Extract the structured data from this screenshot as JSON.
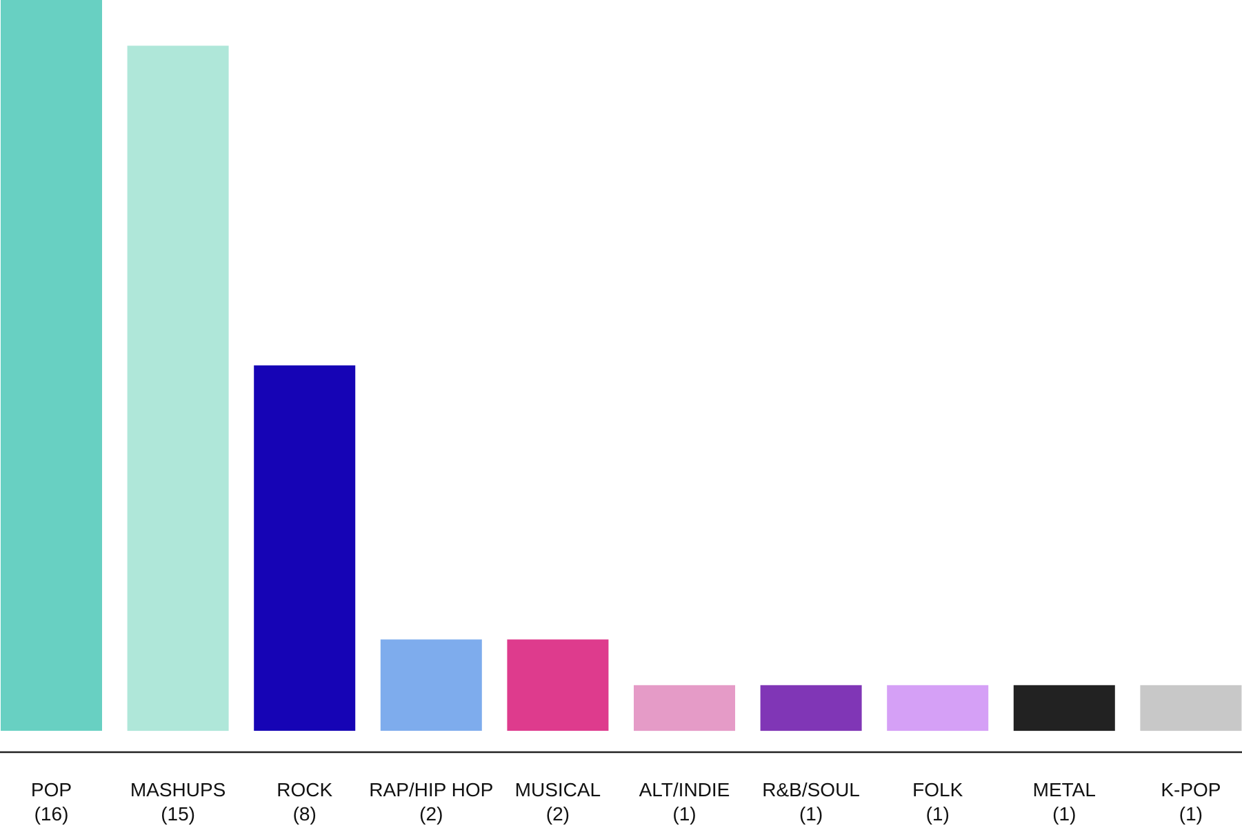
{
  "chart_data": {
    "type": "bar",
    "categories": [
      "POP",
      "MASHUPS",
      "ROCK",
      "RAP/HIP HOP",
      "MUSICAL",
      "ALT/INDIE",
      "R&B/SOUL",
      "FOLK",
      "METAL",
      "K-POP"
    ],
    "count_labels": [
      "(16)",
      "(15)",
      "(8)",
      "(2)",
      "(2)",
      "(1)",
      "(1)",
      "(1)",
      "(1)",
      "(1)"
    ],
    "values": [
      16,
      15,
      8,
      2,
      2,
      1,
      1,
      1,
      1,
      1
    ],
    "colors": [
      "#68d0c2",
      "#afe7d9",
      "#1604b5",
      "#7eaced",
      "#de3b8d",
      "#e59bc7",
      "#8036b6",
      "#d5a0f6",
      "#222222",
      "#c8c8c8"
    ],
    "title": "",
    "xlabel": "",
    "ylabel": "",
    "ylim": [
      0,
      16
    ],
    "grid": false,
    "axis_line_color": "#222222"
  }
}
